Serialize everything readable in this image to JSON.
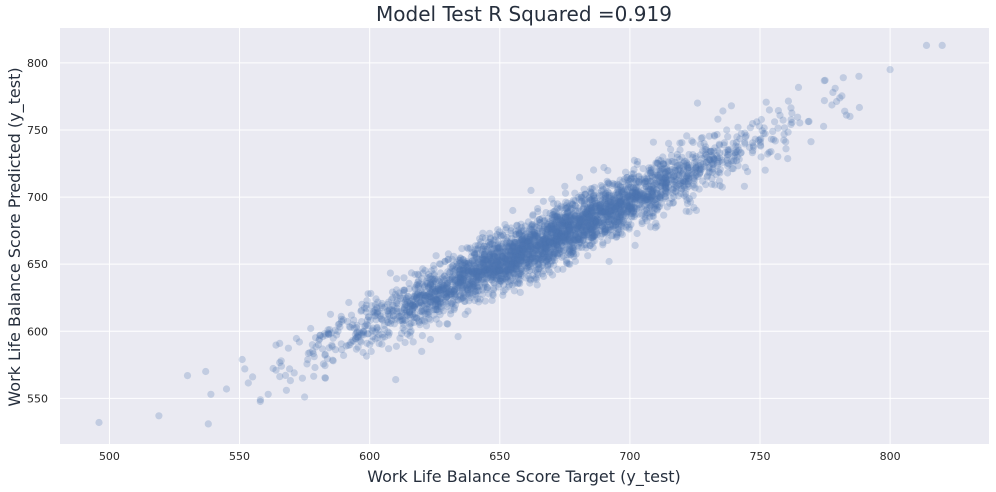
{
  "chart_data": {
    "type": "scatter",
    "title": "Model Test R Squared =0.919",
    "xlabel": "Work Life Balance Score Target (y_test)",
    "ylabel": "Work Life Balance Score Predicted (y_test)",
    "xlim": [
      481,
      838
    ],
    "ylim": [
      516,
      826
    ],
    "xticks": [
      500,
      550,
      600,
      650,
      700,
      750,
      800
    ],
    "yticks": [
      550,
      600,
      650,
      700,
      750,
      800
    ],
    "grid": true,
    "background_color": "#eaeaf2",
    "grid_color": "#ffffff",
    "point_color": "#4c72b0",
    "point_alpha": 0.25,
    "series": [
      {
        "points": [
          [
            496,
            532
          ],
          [
            519,
            537
          ],
          [
            530,
            567
          ],
          [
            537,
            570
          ],
          [
            538,
            531
          ],
          [
            539,
            553
          ],
          [
            545,
            557
          ],
          [
            551,
            579
          ],
          [
            552,
            572
          ],
          [
            555,
            566
          ],
          [
            558,
            549
          ],
          [
            561,
            553
          ],
          [
            564,
            571
          ],
          [
            566,
            578
          ],
          [
            568,
            556
          ],
          [
            571,
            569
          ],
          [
            573,
            592
          ],
          [
            575,
            551
          ],
          [
            577,
            584
          ],
          [
            579,
            573
          ],
          [
            582,
            596
          ],
          [
            584,
            601
          ],
          [
            586,
            578
          ],
          [
            588,
            605
          ],
          [
            591,
            589
          ],
          [
            593,
            612
          ],
          [
            595,
            599
          ],
          [
            597,
            620
          ],
          [
            583,
            565
          ],
          [
            590,
            582
          ],
          [
            578,
            590
          ],
          [
            800,
            795
          ],
          [
            814,
            813
          ],
          [
            820,
            813
          ],
          [
            782,
            789
          ],
          [
            788,
            790
          ],
          [
            775,
            787
          ],
          [
            778,
            778
          ],
          [
            726,
            770
          ],
          [
            610,
            564
          ],
          [
            620,
            585
          ],
          [
            634,
            596
          ],
          [
            655,
            690
          ],
          [
            662,
            705
          ],
          [
            600,
            590
          ],
          [
            702,
            664
          ],
          [
            760,
            736
          ],
          [
            739,
            768
          ],
          [
            716,
            731
          ],
          [
            744,
            708
          ],
          [
            752,
            720
          ],
          [
            692,
            652
          ],
          [
            675,
            708
          ]
        ]
      }
    ],
    "generated_cloud": {
      "count": 3400,
      "x_range": [
        553,
        797
      ],
      "slope": 0.92,
      "intercept": 53,
      "residual_sd": 10.5
    }
  }
}
